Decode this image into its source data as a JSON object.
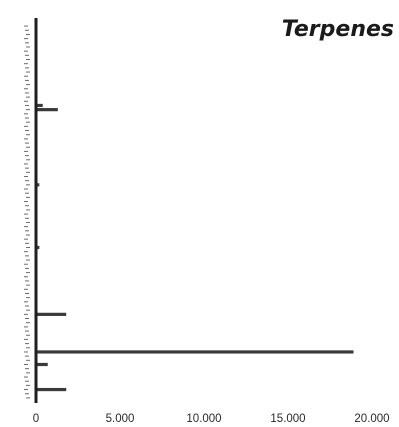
{
  "chart_data": {
    "type": "bar",
    "orientation": "horizontal",
    "title": "Terpenes",
    "xlabel": "",
    "ylabel": "",
    "xlim": [
      0,
      20000
    ],
    "x_ticks": [
      0,
      5000,
      10000,
      15000,
      20000
    ],
    "x_tick_labels": [
      "0",
      "5.000",
      "10.000",
      "15.000",
      "20.000"
    ],
    "grid": false,
    "legend": "none",
    "bar_color": "#3a3a3a",
    "categories": [
      "1",
      "2",
      "3",
      "4",
      "5",
      "6",
      "7",
      "8",
      "9",
      "10",
      "11",
      "12",
      "13",
      "14",
      "15",
      "16",
      "17",
      "18",
      "19",
      "20",
      "21",
      "22",
      "23",
      "24",
      "25",
      "26",
      "27",
      "28",
      "29",
      "30",
      "31",
      "32",
      "33",
      "34",
      "35",
      "36",
      "37",
      "38",
      "39",
      "40",
      "41",
      "42",
      "43",
      "44",
      "45",
      "46",
      "47",
      "48",
      "49",
      "50",
      "51",
      "52",
      "53",
      "54",
      "55",
      "56",
      "57",
      "58",
      "59",
      "60",
      "61",
      "62",
      "63",
      "64",
      "65",
      "66",
      "67",
      "68",
      "69",
      "70",
      "71",
      "72",
      "73",
      "74",
      "75",
      "76",
      "77",
      "78",
      "79",
      "80",
      "81",
      "82",
      "83",
      "84",
      "85",
      "86",
      "87",
      "88",
      "89",
      "90"
    ],
    "values": [
      0,
      0,
      0,
      0,
      0,
      0,
      0,
      0,
      0,
      0,
      0,
      0,
      0,
      0,
      0,
      0,
      0,
      0,
      0,
      400,
      1300,
      0,
      0,
      0,
      0,
      0,
      0,
      0,
      0,
      0,
      0,
      0,
      0,
      0,
      0,
      0,
      0,
      0,
      200,
      0,
      0,
      0,
      0,
      0,
      0,
      0,
      0,
      0,
      0,
      0,
      0,
      0,
      0,
      200,
      0,
      0,
      0,
      0,
      0,
      0,
      0,
      0,
      0,
      0,
      0,
      0,
      0,
      0,
      0,
      1800,
      0,
      0,
      0,
      0,
      0,
      0,
      0,
      0,
      18900,
      0,
      0,
      700,
      0,
      0,
      0,
      0,
      0,
      1800,
      0,
      0
    ]
  }
}
